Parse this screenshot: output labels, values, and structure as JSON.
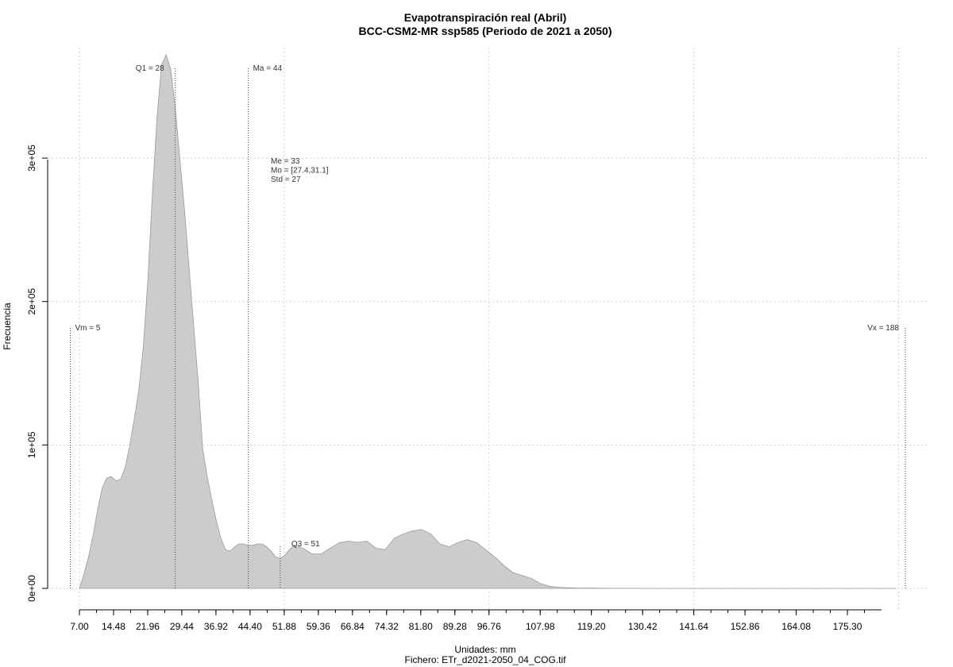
{
  "chart_data": {
    "type": "area",
    "title": "Evapotranspiración real (Abril)",
    "subtitle": "BCC-CSM2-MR ssp585 (Periodo de 2021 a 2050)",
    "xlabel": "Unidades: mm",
    "ylabel": "Frecuencia",
    "footer": "Fichero: ETr_d2021-2050_04_COG.tif",
    "xlim": [
      7,
      188
    ],
    "ylim": [
      0,
      370000
    ],
    "grid": true,
    "fill_color": "#cccccc",
    "x_ticks": [
      7.0,
      14.48,
      21.96,
      29.44,
      36.92,
      44.4,
      51.88,
      59.36,
      66.84,
      74.32,
      81.8,
      89.28,
      96.76,
      107.98,
      119.2,
      130.42,
      141.64,
      152.86,
      164.08,
      175.3
    ],
    "x_tick_labels": [
      "7.00",
      "14.48",
      "21.96",
      "29.44",
      "36.92",
      "44.40",
      "51.88",
      "59.36",
      "66.84",
      "74.32",
      "81.80",
      "89.28",
      "96.76",
      "107.98",
      "119.20",
      "130.42",
      "141.64",
      "152.86",
      "164.08",
      "175.30"
    ],
    "y_ticks": [
      0,
      100000,
      200000,
      300000
    ],
    "y_tick_labels": [
      "0e+00",
      "1e+05",
      "2e+05",
      "3e+05"
    ],
    "x_grid": [
      7.0,
      51.88,
      96.76,
      141.64,
      186.52
    ],
    "y_grid": [
      0,
      100000,
      200000,
      300000
    ],
    "density": {
      "x": [
        7,
        8,
        9,
        10,
        11,
        12,
        13,
        14,
        15,
        16,
        17,
        18,
        19,
        20,
        21,
        22,
        23,
        24,
        25,
        26,
        27,
        28,
        29,
        30,
        31,
        32,
        33,
        34,
        35,
        36,
        37,
        38,
        39,
        40,
        41,
        42,
        43,
        44,
        45,
        46,
        47,
        48,
        49,
        50,
        51,
        52,
        53,
        54,
        56,
        58,
        60,
        62,
        64,
        66,
        68,
        70,
        72,
        74,
        76,
        78,
        80,
        82,
        84,
        86,
        88,
        90,
        92,
        94,
        96,
        98,
        100,
        102,
        104,
        106,
        108,
        110,
        112,
        114,
        116,
        118,
        120,
        122,
        124,
        126,
        128,
        130,
        135,
        140,
        150,
        160,
        170,
        180,
        186
      ],
      "y": [
        0,
        10000,
        22000,
        37000,
        55000,
        70000,
        77000,
        78000,
        75000,
        76000,
        84000,
        99000,
        118000,
        138000,
        168000,
        215000,
        275000,
        328000,
        365000,
        372000,
        362000,
        335000,
        300000,
        265000,
        225000,
        185000,
        145000,
        98000,
        78000,
        62000,
        47000,
        35000,
        27000,
        26000,
        29000,
        31000,
        31000,
        30000,
        30000,
        31000,
        31000,
        29000,
        26000,
        22000,
        21000,
        23000,
        27000,
        30000,
        28000,
        24000,
        24000,
        28000,
        32000,
        33000,
        32000,
        33000,
        28000,
        27000,
        35000,
        38000,
        40000,
        41000,
        38000,
        31000,
        29000,
        32000,
        34000,
        32000,
        27000,
        22000,
        16000,
        11000,
        9000,
        7000,
        3500,
        1500,
        800,
        500,
        300,
        200,
        150,
        100,
        80,
        60,
        40,
        30,
        20,
        15,
        10,
        5,
        3,
        2,
        0
      ]
    },
    "annotations": {
      "vm": {
        "label": "Vm = 5",
        "x": 5
      },
      "q1": {
        "label": "Q1 = 28",
        "x": 28
      },
      "ma": {
        "label": "Ma = 44",
        "x": 44
      },
      "q3": {
        "label": "Q3 = 51",
        "x": 51
      },
      "vx": {
        "label": "Vx = 188",
        "x": 188
      },
      "stats": [
        "Me = 33",
        "Mo = [27.4,31.1]",
        "Std = 27"
      ]
    }
  }
}
